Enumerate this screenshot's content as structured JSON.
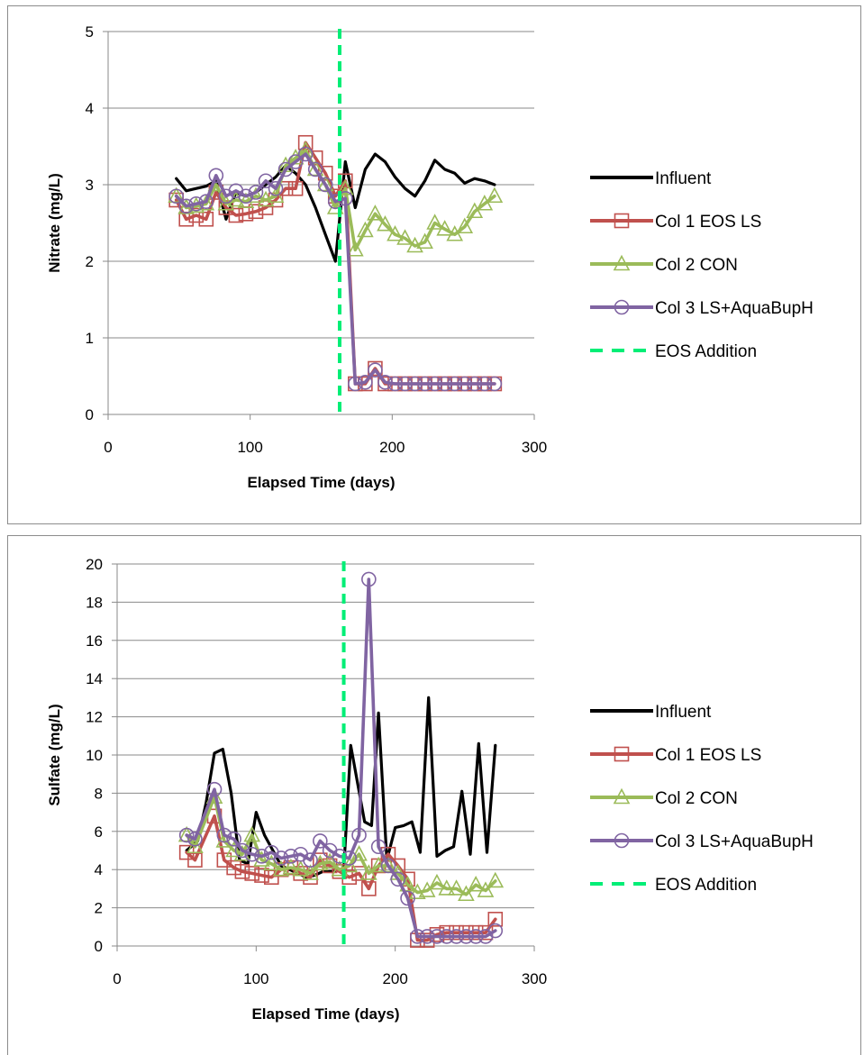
{
  "chart_data": [
    {
      "type": "line",
      "xlabel": "Elapsed Time (days)",
      "ylabel": "Nitrate (mg/L)",
      "xlim": [
        0,
        300
      ],
      "ylim": [
        0,
        5
      ],
      "xticks": [
        0,
        100,
        200,
        300
      ],
      "yticks": [
        0,
        1,
        2,
        3,
        4,
        5
      ],
      "grid": "horizontal",
      "legend_position": "right",
      "series": [
        {
          "name": "Influent",
          "color": "#000000",
          "marker": "none",
          "x": [
            48,
            55,
            62,
            69,
            76,
            83,
            90,
            97,
            104,
            111,
            118,
            125,
            132,
            139,
            146,
            153,
            160,
            167,
            174,
            181,
            188,
            195,
            202,
            209,
            216,
            223,
            230,
            237,
            244,
            251,
            258,
            265,
            272
          ],
          "y": [
            3.08,
            2.92,
            2.95,
            2.98,
            3.05,
            2.55,
            2.9,
            2.85,
            2.9,
            3.0,
            3.1,
            3.25,
            3.15,
            3.0,
            2.7,
            2.35,
            2.0,
            3.3,
            2.7,
            3.2,
            3.4,
            3.3,
            3.1,
            2.95,
            2.85,
            3.05,
            3.32,
            3.2,
            3.15,
            3.02,
            3.08,
            3.05,
            3.0
          ]
        },
        {
          "name": "Col 1 EOS LS",
          "color": "#c0504d",
          "marker": "square",
          "x": [
            48,
            55,
            62,
            69,
            76,
            83,
            90,
            97,
            104,
            111,
            118,
            125,
            132,
            139,
            146,
            153,
            160,
            167,
            174,
            181,
            188,
            195,
            202,
            209,
            216,
            223,
            230,
            237,
            244,
            251,
            258,
            265,
            272
          ],
          "y": [
            2.8,
            2.55,
            2.6,
            2.55,
            2.9,
            2.7,
            2.6,
            2.62,
            2.65,
            2.7,
            2.8,
            2.95,
            2.95,
            3.55,
            3.35,
            3.15,
            2.85,
            3.05,
            0.4,
            0.4,
            0.6,
            0.4,
            0.4,
            0.4,
            0.4,
            0.4,
            0.4,
            0.4,
            0.4,
            0.4,
            0.4,
            0.4,
            0.4
          ]
        },
        {
          "name": "Col 2 CON",
          "color": "#9bbb59",
          "marker": "triangle",
          "x": [
            48,
            55,
            62,
            69,
            76,
            83,
            90,
            97,
            104,
            111,
            118,
            125,
            132,
            139,
            146,
            153,
            160,
            167,
            174,
            181,
            188,
            195,
            202,
            209,
            216,
            223,
            230,
            237,
            244,
            251,
            258,
            265,
            272
          ],
          "y": [
            2.85,
            2.7,
            2.72,
            2.75,
            3.0,
            2.75,
            2.8,
            2.78,
            2.85,
            2.8,
            2.85,
            3.25,
            3.35,
            3.45,
            3.2,
            3.0,
            2.7,
            2.95,
            2.15,
            2.4,
            2.62,
            2.48,
            2.35,
            2.3,
            2.2,
            2.25,
            2.5,
            2.42,
            2.35,
            2.45,
            2.65,
            2.75,
            2.85
          ]
        },
        {
          "name": "Col 3 LS+AquaBupH",
          "color": "#8064a2",
          "marker": "circle",
          "x": [
            48,
            55,
            62,
            69,
            76,
            83,
            90,
            97,
            104,
            111,
            118,
            125,
            132,
            139,
            146,
            153,
            160,
            167,
            174,
            181,
            188,
            195,
            202,
            209,
            216,
            223,
            230,
            237,
            244,
            251,
            258,
            265,
            272
          ],
          "y": [
            2.85,
            2.72,
            2.75,
            2.78,
            3.12,
            2.85,
            2.92,
            2.85,
            2.9,
            3.05,
            2.95,
            3.2,
            3.3,
            3.4,
            3.2,
            3.0,
            2.78,
            2.82,
            0.4,
            0.42,
            0.58,
            0.42,
            0.4,
            0.4,
            0.4,
            0.4,
            0.4,
            0.4,
            0.4,
            0.4,
            0.4,
            0.4,
            0.4
          ]
        }
      ],
      "vline": {
        "name": "EOS Addition",
        "x": 163,
        "color": "#00ee76",
        "style": "dashed"
      }
    },
    {
      "type": "line",
      "xlabel": "Elapsed Time (days)",
      "ylabel": "Sulfate (mg/L)",
      "xlim": [
        0,
        300
      ],
      "ylim": [
        0,
        20
      ],
      "xticks": [
        0,
        100,
        200,
        300
      ],
      "yticks": [
        0,
        2,
        4,
        6,
        8,
        10,
        12,
        14,
        16,
        18,
        20
      ],
      "grid": "horizontal",
      "legend_position": "right",
      "series": [
        {
          "name": "Influent",
          "color": "#000000",
          "marker": "none",
          "x": [
            50,
            58,
            64,
            70,
            76,
            82,
            88,
            94,
            100,
            106,
            112,
            118,
            124,
            130,
            136,
            142,
            148,
            155,
            163,
            168,
            173,
            178,
            183,
            188,
            194,
            200,
            206,
            212,
            218,
            224,
            230,
            236,
            242,
            248,
            254,
            260,
            266,
            272
          ],
          "y": [
            5.0,
            5.5,
            7.5,
            10.1,
            10.3,
            8.0,
            4.5,
            4.3,
            7.0,
            5.8,
            5.0,
            4.2,
            4.0,
            3.8,
            3.6,
            3.7,
            3.9,
            3.9,
            4.0,
            10.5,
            8.5,
            6.5,
            6.3,
            12.2,
            4.5,
            6.2,
            6.3,
            6.5,
            4.9,
            13.0,
            4.7,
            5.0,
            5.2,
            8.1,
            4.8,
            10.6,
            4.9,
            10.5
          ]
        },
        {
          "name": "Col 1 EOS LS",
          "color": "#c0504d",
          "marker": "square",
          "x": [
            50,
            56,
            70,
            77,
            84,
            90,
            97,
            104,
            111,
            118,
            125,
            132,
            139,
            146,
            153,
            160,
            167,
            174,
            181,
            188,
            195,
            202,
            209,
            216,
            223,
            230,
            237,
            244,
            251,
            258,
            265,
            272
          ],
          "y": [
            4.9,
            4.5,
            6.8,
            4.5,
            4.1,
            3.9,
            3.8,
            3.7,
            3.6,
            4.0,
            4.1,
            3.8,
            3.6,
            4.5,
            4.2,
            3.9,
            3.6,
            3.8,
            3.0,
            4.2,
            4.8,
            4.2,
            3.5,
            0.3,
            0.3,
            0.6,
            0.7,
            0.7,
            0.7,
            0.7,
            0.7,
            1.4
          ]
        },
        {
          "name": "Col 2 CON",
          "color": "#9bbb59",
          "marker": "triangle",
          "x": [
            50,
            56,
            70,
            77,
            84,
            90,
            97,
            104,
            111,
            118,
            125,
            132,
            139,
            146,
            153,
            160,
            167,
            174,
            181,
            188,
            195,
            202,
            209,
            216,
            223,
            230,
            237,
            244,
            251,
            258,
            265,
            272
          ],
          "y": [
            5.8,
            5.2,
            7.8,
            5.5,
            5.0,
            4.8,
            5.8,
            4.5,
            4.3,
            4.0,
            4.1,
            4.0,
            3.8,
            4.3,
            4.4,
            4.0,
            4.2,
            4.8,
            3.8,
            4.2,
            4.2,
            3.8,
            3.2,
            2.8,
            2.9,
            3.3,
            3.0,
            3.0,
            2.7,
            3.2,
            2.9,
            3.4
          ]
        },
        {
          "name": "Col 3 LS+AquaBupH",
          "color": "#8064a2",
          "marker": "circle",
          "x": [
            50,
            56,
            70,
            77,
            84,
            90,
            97,
            104,
            111,
            118,
            125,
            132,
            139,
            146,
            153,
            160,
            167,
            174,
            181,
            188,
            195,
            202,
            209,
            216,
            223,
            230,
            237,
            244,
            251,
            258,
            265,
            272
          ],
          "y": [
            5.8,
            5.6,
            8.2,
            5.8,
            5.6,
            5.0,
            4.8,
            4.7,
            4.9,
            4.6,
            4.7,
            4.8,
            4.5,
            5.5,
            5.0,
            4.7,
            4.6,
            5.8,
            19.2,
            5.2,
            4.2,
            3.5,
            2.5,
            0.5,
            0.5,
            0.5,
            0.5,
            0.5,
            0.5,
            0.5,
            0.5,
            0.8
          ]
        }
      ],
      "vline": {
        "name": "EOS Addition",
        "x": 163,
        "color": "#00ee76",
        "style": "dashed"
      }
    }
  ]
}
